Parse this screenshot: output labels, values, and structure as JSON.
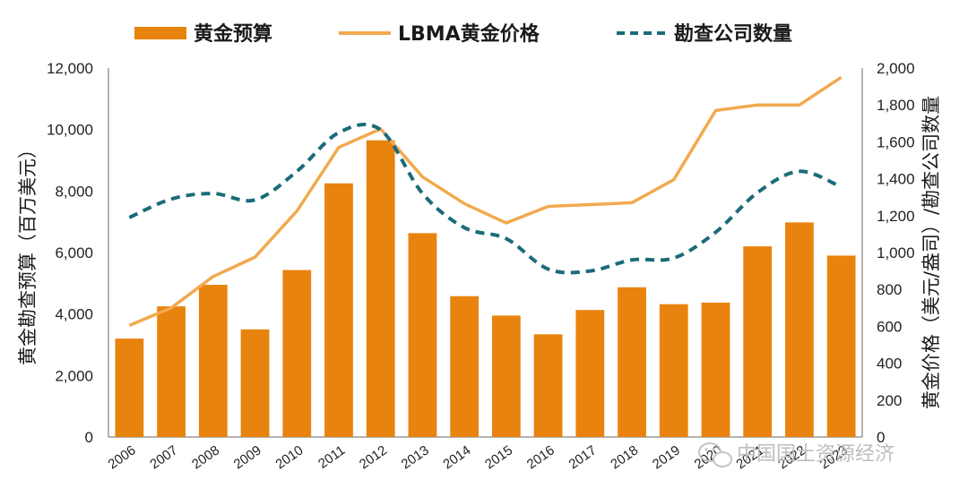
{
  "chart_data": {
    "type": "bar",
    "categories": [
      "2006",
      "2007",
      "2008",
      "2009",
      "2010",
      "2011",
      "2012",
      "2013",
      "2014",
      "2015",
      "2016",
      "2017",
      "2018",
      "2019",
      "2020",
      "2021",
      "2022",
      "2023"
    ],
    "series": [
      {
        "name": "黄金预算",
        "type": "bar",
        "axis": "left",
        "color": "#E8830E",
        "values": [
          3200,
          4250,
          4950,
          3500,
          5430,
          8250,
          9650,
          6630,
          4580,
          3950,
          3340,
          4130,
          4870,
          4320,
          4370,
          6200,
          6980,
          5900
        ]
      },
      {
        "name": "LBMA黄金价格",
        "type": "line",
        "axis": "right",
        "color": "#F2A94E",
        "values": [
          605,
          700,
          870,
          975,
          1225,
          1570,
          1670,
          1410,
          1265,
          1160,
          1250,
          1260,
          1270,
          1395,
          1770,
          1800,
          1800,
          1950
        ]
      },
      {
        "name": "勘查公司数量",
        "type": "line-dashed",
        "axis": "right",
        "color": "#1C6B7A",
        "values": [
          1190,
          1290,
          1320,
          1285,
          1440,
          1650,
          1665,
          1320,
          1135,
          1075,
          910,
          900,
          960,
          970,
          1110,
          1325,
          1440,
          1355
        ]
      }
    ],
    "ylabel_left": "黄金勘查预算（百万美元）",
    "ylabel_right": "黄金价格（美元/盎司）/勘查公司数量",
    "ylim_left": [
      0,
      12000
    ],
    "ylim_right": [
      0,
      2000
    ],
    "yticks_left": [
      "0",
      "2,000",
      "4,000",
      "6,000",
      "8,000",
      "10,000",
      "12,000"
    ],
    "yticks_right": [
      "0",
      "200",
      "400",
      "600",
      "800",
      "1,000",
      "1,200",
      "1,400",
      "1,600",
      "1,800",
      "2,000"
    ],
    "legend": [
      "黄金预算",
      "LBMA黄金价格",
      "勘查公司数量"
    ],
    "legend_position": "top",
    "grid": false
  },
  "watermark": "中国国土资源经济",
  "colors": {
    "bar": "#E8830E",
    "price": "#F2A94E",
    "count": "#1C6B7A",
    "axis": "#9a9a9a"
  },
  "icons": {
    "watermark": "wechat-icon"
  }
}
